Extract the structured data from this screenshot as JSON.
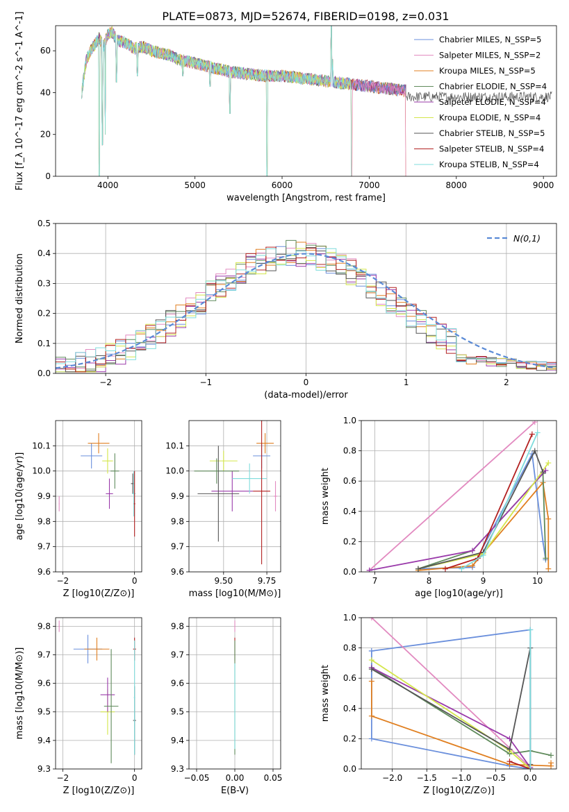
{
  "figure": {
    "title": "PLATE=0873, MJD=52674, FIBERID=0198, z=0.031"
  },
  "model_styles": [
    {
      "name": "Chabrier MILES",
      "nssp": "5",
      "color": "#6a8fdc"
    },
    {
      "name": "Salpeter MILES",
      "nssp": "2",
      "color": "#e28ac0"
    },
    {
      "name": "Kroupa MILES",
      "nssp": "5",
      "color": "#e07f20"
    },
    {
      "name": "Chabrier ELODIE",
      "nssp": "4",
      "color": "#5f8a5b"
    },
    {
      "name": "Salpeter ELODIE",
      "nssp": "4",
      "color": "#9a3aaa"
    },
    {
      "name": "Kroupa ELODIE",
      "nssp": "4",
      "color": "#d4e64a"
    },
    {
      "name": "Chabrier STELIB",
      "nssp": "5",
      "color": "#555555"
    },
    {
      "name": "Salpeter STELIB",
      "nssp": "4",
      "color": "#b22020"
    },
    {
      "name": "Kroupa STELIB",
      "nssp": "4",
      "color": "#7fdcdc"
    }
  ],
  "chart_data": [
    {
      "id": "spectrum",
      "type": "line",
      "xlabel": "wavelength [Angstrom, rest frame]",
      "ylabel": "Flux [f_λ 10^-17 erg cm^-2 s^-1 A^-1]",
      "xlim": [
        3400,
        9150
      ],
      "ylim": [
        0,
        72
      ],
      "xticks": [
        4000,
        5000,
        6000,
        7000,
        8000,
        9000
      ],
      "yticks": [
        0,
        20,
        40,
        60
      ],
      "grid": false,
      "legend_position": "top-right",
      "legend": [
        "Chabrier MILES, N_SSP=5",
        "Salpeter MILES, N_SSP=2",
        "Kroupa MILES, N_SSP=5",
        "Chabrier ELODIE, N_SSP=4",
        "Salpeter ELODIE, N_SSP=4",
        "Kroupa ELODIE, N_SSP=4",
        "Chabrier STELIB, N_SSP=5",
        "Salpeter STELIB, N_SSP=4",
        "Kroupa STELIB, N_SSP=4"
      ],
      "continuum": {
        "x": [
          3700,
          3750,
          3800,
          3850,
          3900,
          3950,
          4000,
          4050,
          4100,
          4200,
          4300,
          4400,
          4500,
          4600,
          4700,
          4800,
          4900,
          5000,
          5200,
          5400,
          5600,
          5800,
          6000,
          6200,
          6400,
          6600,
          6800,
          7000,
          7200,
          7400,
          7420
        ],
        "y": [
          40,
          55,
          60,
          63,
          66,
          62,
          68,
          69,
          65,
          64,
          61,
          62,
          60,
          59,
          58,
          56,
          55,
          54,
          52,
          50,
          49,
          48,
          48,
          47,
          46,
          45,
          44,
          43,
          42,
          41,
          41
        ]
      },
      "features": [
        {
          "x": 3700,
          "y": 37
        },
        {
          "x": 3900,
          "y": 0
        },
        {
          "x": 3935,
          "y": 15
        },
        {
          "x": 3970,
          "y": 20
        },
        {
          "x": 4100,
          "y": 45
        },
        {
          "x": 4340,
          "y": 48
        },
        {
          "x": 4861,
          "y": 48
        },
        {
          "x": 5175,
          "y": 43
        },
        {
          "x": 5400,
          "y": 30
        },
        {
          "x": 5825,
          "y": 0
        },
        {
          "x": 6563,
          "y": 72
        },
        {
          "x": 6580,
          "y": 56
        },
        {
          "x": 6800,
          "y": 0
        },
        {
          "x": 7425,
          "y": 0
        }
      ]
    },
    {
      "id": "residual_distribution",
      "type": "line",
      "xlabel": "(data-model)/error",
      "ylabel": "Normed distribution",
      "xlim": [
        -2.5,
        2.5
      ],
      "ylim": [
        0,
        0.5
      ],
      "xticks": [
        -2,
        -1,
        0,
        1,
        2
      ],
      "yticks": [
        0.0,
        0.1,
        0.2,
        0.3,
        0.4,
        0.5
      ],
      "grid": true,
      "legend_position": "top-right",
      "legend": [
        "N(0,1)"
      ],
      "reference": {
        "name": "N(0,1)",
        "style": "dashed",
        "color": "#5a8ad6"
      },
      "histogram_bin_width": 0.1,
      "histogram_center": -0.1,
      "histogram_sigma": 0.95,
      "histogram_peak": 0.4
    },
    {
      "id": "age_vs_Z",
      "type": "scatter",
      "xlabel": "Z [log10(Z/Z⊙)]",
      "ylabel": "age [log10(age/yr)]",
      "xlim": [
        -2.2,
        0.2
      ],
      "ylim": [
        9.6,
        10.2
      ],
      "xticks": [
        -2,
        0
      ],
      "yticks": [
        9.6,
        9.7,
        9.8,
        9.9,
        10.0,
        10.1
      ],
      "grid": true,
      "points": [
        {
          "x": -2.1,
          "y": 9.87,
          "xerr": 0.01,
          "yerr": 0.03,
          "c": 1
        },
        {
          "x": -1.2,
          "y": 10.06,
          "xerr": 0.3,
          "yerr": 0.05,
          "c": 0
        },
        {
          "x": -1.0,
          "y": 10.11,
          "xerr": 0.3,
          "yerr": 0.04,
          "c": 2
        },
        {
          "x": -0.75,
          "y": 10.04,
          "xerr": 0.15,
          "yerr": 0.05,
          "c": 5
        },
        {
          "x": -0.7,
          "y": 9.91,
          "xerr": 0.1,
          "yerr": 0.06,
          "c": 4
        },
        {
          "x": -0.55,
          "y": 10.0,
          "xerr": 0.12,
          "yerr": 0.07,
          "c": 3
        },
        {
          "x": -0.05,
          "y": 9.95,
          "xerr": 0.05,
          "yerr": 0.04,
          "c": 6
        },
        {
          "x": -0.02,
          "y": 9.91,
          "xerr": 0.05,
          "yerr": 0.09,
          "c": 8
        },
        {
          "x": 0.0,
          "y": 9.87,
          "xerr": 0.02,
          "yerr": 0.13,
          "c": 7
        }
      ]
    },
    {
      "id": "age_vs_mass",
      "type": "scatter",
      "xlabel": "mass [log10(M/M⊙)]",
      "ylabel": "",
      "xlim": [
        9.3,
        9.83
      ],
      "ylim": [
        9.6,
        10.2
      ],
      "xticks": [
        9.5,
        9.75
      ],
      "yticks": [
        9.6,
        9.7,
        9.8,
        9.9,
        10.0,
        10.1
      ],
      "grid": true,
      "points": [
        {
          "x": 9.8,
          "y": 9.9,
          "xerr": 0.01,
          "yerr": 0.06,
          "c": 1
        },
        {
          "x": 9.72,
          "y": 10.06,
          "xerr": 0.05,
          "yerr": 0.05,
          "c": 0
        },
        {
          "x": 9.74,
          "y": 10.11,
          "xerr": 0.05,
          "yerr": 0.04,
          "c": 2
        },
        {
          "x": 9.5,
          "y": 10.04,
          "xerr": 0.08,
          "yerr": 0.04,
          "c": 5
        },
        {
          "x": 9.55,
          "y": 9.92,
          "xerr": 0.12,
          "yerr": 0.08,
          "c": 4
        },
        {
          "x": 9.46,
          "y": 10.0,
          "xerr": 0.13,
          "yerr": 0.05,
          "c": 3
        },
        {
          "x": 9.47,
          "y": 9.91,
          "xerr": 0.12,
          "yerr": 0.19,
          "c": 6
        },
        {
          "x": 9.65,
          "y": 9.97,
          "xerr": 0.1,
          "yerr": 0.06,
          "c": 8
        },
        {
          "x": 9.72,
          "y": 9.92,
          "xerr": 0.05,
          "yerr": 0.29,
          "c": 7
        }
      ]
    },
    {
      "id": "weight_vs_age",
      "type": "line",
      "xlabel": "age [log10(age/yr)]",
      "ylabel": "mass weight",
      "xlim": [
        6.75,
        10.35
      ],
      "ylim": [
        0.0,
        1.0
      ],
      "xticks": [
        7,
        8,
        9,
        10
      ],
      "yticks": [
        0.0,
        0.2,
        0.4,
        0.6,
        0.8,
        1.0
      ],
      "grid": true,
      "series": [
        {
          "c": 0,
          "x": [
            7.8,
            8.8,
            9.9,
            10.1,
            10.15
          ],
          "y": [
            0.02,
            0.03,
            0.78,
            0.2,
            0.08
          ]
        },
        {
          "c": 1,
          "x": [
            6.9,
            9.95
          ],
          "y": [
            0.01,
            0.99
          ]
        },
        {
          "c": 2,
          "x": [
            7.8,
            8.8,
            10.1,
            10.2,
            10.2
          ],
          "y": [
            0.01,
            0.04,
            0.59,
            0.35,
            0.02
          ]
        },
        {
          "c": 3,
          "x": [
            7.8,
            8.8,
            10.1,
            10.15
          ],
          "y": [
            0.02,
            0.14,
            0.65,
            0.09
          ]
        },
        {
          "c": 4,
          "x": [
            6.9,
            8.8,
            10.15
          ],
          "y": [
            0.01,
            0.14,
            0.67
          ]
        },
        {
          "c": 5,
          "x": [
            7.8,
            9.0,
            10.2
          ],
          "y": [
            0.02,
            0.12,
            0.72
          ]
        },
        {
          "c": 6,
          "x": [
            7.8,
            9.0,
            9.95,
            10.1
          ],
          "y": [
            0.02,
            0.13,
            0.8,
            0.66
          ]
        },
        {
          "c": 7,
          "x": [
            8.3,
            8.9,
            9.9
          ],
          "y": [
            0.02,
            0.09,
            0.91
          ]
        },
        {
          "c": 8,
          "x": [
            8.6,
            9.0,
            10.0
          ],
          "y": [
            0.02,
            0.11,
            0.92
          ]
        }
      ]
    },
    {
      "id": "mass_vs_Z",
      "type": "scatter",
      "xlabel": "Z [log10(Z/Z⊙)]",
      "ylabel": "mass [log10(M/M⊙)]",
      "xlim": [
        -2.2,
        0.2
      ],
      "ylim": [
        9.3,
        9.83
      ],
      "xticks": [
        -2,
        0
      ],
      "yticks": [
        9.3,
        9.4,
        9.5,
        9.6,
        9.7,
        9.8
      ],
      "grid": true,
      "points": [
        {
          "x": -2.1,
          "y": 9.8,
          "xerr": 0.01,
          "yerr": 0.02,
          "c": 1
        },
        {
          "x": -1.3,
          "y": 9.72,
          "xerr": 0.4,
          "yerr": 0.05,
          "c": 0
        },
        {
          "x": -1.05,
          "y": 9.72,
          "xerr": 0.35,
          "yerr": 0.04,
          "c": 2
        },
        {
          "x": -0.75,
          "y": 9.5,
          "xerr": 0.2,
          "yerr": 0.08,
          "c": 5
        },
        {
          "x": -0.75,
          "y": 9.56,
          "xerr": 0.2,
          "yerr": 0.06,
          "c": 4
        },
        {
          "x": -0.65,
          "y": 9.52,
          "xerr": 0.2,
          "yerr": 0.2,
          "c": 3
        },
        {
          "x": 0.0,
          "y": 9.72,
          "xerr": 0.04,
          "yerr": 0.04,
          "c": 7
        },
        {
          "x": 0.0,
          "y": 9.47,
          "xerr": 0.04,
          "yerr": 0.12,
          "c": 6
        },
        {
          "x": 0.0,
          "y": 9.55,
          "xerr": 0.02,
          "yerr": 0.2,
          "c": 8
        }
      ]
    },
    {
      "id": "mass_vs_ebv",
      "type": "scatter",
      "xlabel": "E(B-V)",
      "ylabel": "",
      "xlim": [
        -0.06,
        0.06
      ],
      "ylim": [
        9.3,
        9.83
      ],
      "xticks": [
        -0.05,
        0.0,
        0.05
      ],
      "yticks": [
        9.3,
        9.4,
        9.5,
        9.6,
        9.7,
        9.8
      ],
      "grid": true,
      "points": [
        {
          "x": 0.0,
          "y": 9.8,
          "xerr": 0.0,
          "yerr": 0.02,
          "c": 1
        },
        {
          "x": 0.0,
          "y": 9.72,
          "xerr": 0.0,
          "yerr": 0.04,
          "c": 7
        },
        {
          "x": 0.0,
          "y": 9.55,
          "xerr": 0.0,
          "yerr": 0.2,
          "c": 3
        },
        {
          "x": 0.0,
          "y": 9.52,
          "xerr": 0.0,
          "yerr": 0.15,
          "c": 8
        }
      ]
    },
    {
      "id": "weight_vs_Z",
      "type": "line",
      "xlabel": "Z [log10(Z/Z⊙)]",
      "ylabel": "mass weight",
      "xlim": [
        -2.45,
        0.38
      ],
      "ylim": [
        0.0,
        1.0
      ],
      "xticks": [
        -2.0,
        -1.5,
        -1.0,
        -0.5,
        0.0
      ],
      "yticks": [
        0.0,
        0.2,
        0.4,
        0.6,
        0.8,
        1.0
      ],
      "grid": true,
      "series": [
        {
          "c": 0,
          "x": [
            -2.3,
            -2.3,
            -0.3,
            0.0,
            0.0,
            -2.3
          ],
          "y": [
            0.78,
            0.2,
            0.02,
            0.0,
            0.92,
            0.78
          ]
        },
        {
          "c": 1,
          "x": [
            -2.3,
            0.0
          ],
          "y": [
            1.0,
            0.01
          ]
        },
        {
          "c": 2,
          "x": [
            -2.3,
            -2.3,
            -0.3,
            0.3,
            0.3
          ],
          "y": [
            0.58,
            0.35,
            0.03,
            0.02,
            0.04
          ]
        },
        {
          "c": 3,
          "x": [
            -2.3,
            -0.3,
            0.0,
            0.3
          ],
          "y": [
            0.67,
            0.1,
            0.12,
            0.09
          ]
        },
        {
          "c": 4,
          "x": [
            -2.3,
            -0.3,
            0.0
          ],
          "y": [
            0.67,
            0.2,
            0.01
          ]
        },
        {
          "c": 5,
          "x": [
            -2.3,
            -0.3,
            0.0
          ],
          "y": [
            0.72,
            0.12,
            0.0
          ]
        },
        {
          "c": 6,
          "x": [
            -2.3,
            -0.3,
            0.0,
            0.0
          ],
          "y": [
            0.66,
            0.13,
            0.8,
            0.03
          ]
        },
        {
          "c": 7,
          "x": [
            -0.3,
            0.0
          ],
          "y": [
            0.05,
            0.0
          ]
        },
        {
          "c": 8,
          "x": [
            0.0,
            0.0
          ],
          "y": [
            0.92,
            0.0
          ]
        }
      ]
    }
  ]
}
